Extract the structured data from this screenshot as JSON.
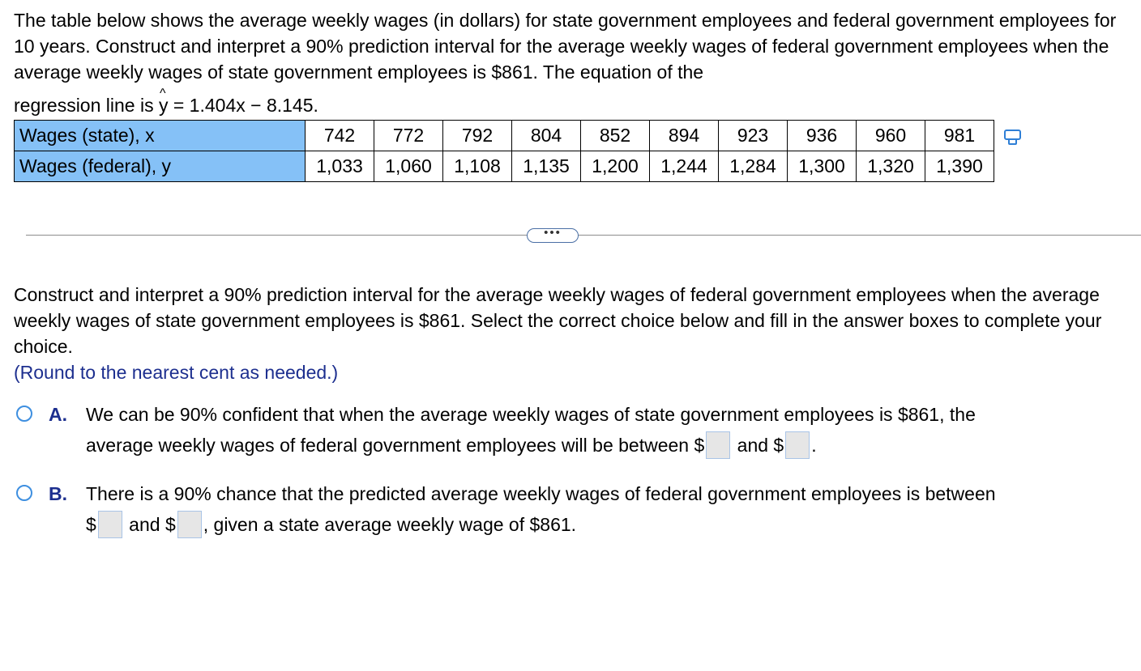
{
  "problem": {
    "intro": "The table below shows the average weekly wages (in dollars) for state government employees and federal government employees for 10 years. Construct and interpret a 90% prediction interval for the average weekly wages of federal government employees when the average weekly wages of state government employees is $861. The equation of the",
    "regression_prefix": "regression line is ",
    "regression_y": "y",
    "regression_hat": "^",
    "regression_rest": " = 1.404x − 8.145."
  },
  "table": {
    "row_x_label": "Wages (state), x",
    "row_y_label": "Wages (federal), y",
    "x": [
      "742",
      "772",
      "792",
      "804",
      "852",
      "894",
      "923",
      "936",
      "960",
      "981"
    ],
    "y": [
      "1,033",
      "1,060",
      "1,108",
      "1,135",
      "1,200",
      "1,244",
      "1,284",
      "1,300",
      "1,320",
      "1,390"
    ]
  },
  "icons": {
    "copy": "copy-table-icon",
    "expand": "more-dots"
  },
  "expand_label": "•••",
  "question": {
    "text": "Construct and interpret a 90% prediction interval for the average weekly wages of federal government employees when the average weekly wages of state government employees is $861. Select the correct choice below and fill in the answer boxes to complete your choice.",
    "note": "(Round to the nearest cent as needed.)"
  },
  "choices": {
    "a": {
      "letter": "A.",
      "line1": "We can be 90% confident that when the average weekly wages of state government employees is $861, the",
      "line2_start": "average weekly wages of federal government employees will be between $",
      "line2_mid": " and $",
      "line2_end": "."
    },
    "b": {
      "letter": "B.",
      "line1": "There is a 90% chance that the predicted average weekly wages of federal government employees is between",
      "line2_start": "$",
      "line2_mid": " and $",
      "line2_end": ", given a state average weekly wage of $861."
    }
  }
}
